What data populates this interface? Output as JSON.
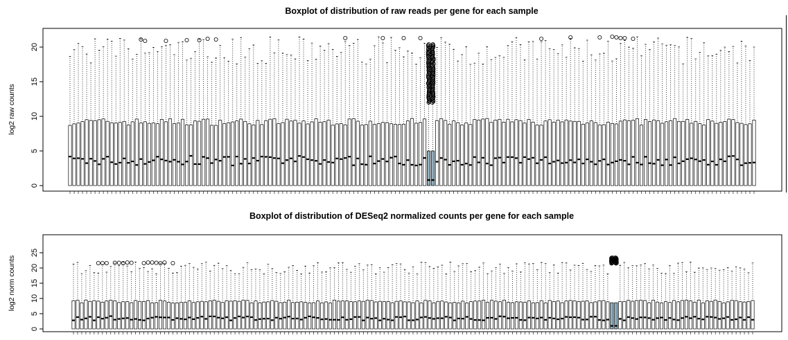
{
  "chart_data": [
    {
      "type": "boxplot",
      "title": "Boxplot of distribution of raw reads per gene for each sample",
      "ylabel": "log2 raw counts",
      "xlabel": "",
      "ylim": [
        0,
        22
      ],
      "yticks": [
        0,
        5,
        10,
        15,
        20
      ],
      "grid": false,
      "legend": "none",
      "n_samples": 165,
      "box_color": "#ffffff",
      "highlight_color": "#8fb0c0",
      "highlighted_samples": [
        86,
        87
      ],
      "median_typical": 3.6,
      "q3_typical": 9.2,
      "q1_typical": 0,
      "whisker_max_range": [
        17.5,
        21.5
      ],
      "outlier_sample_whisker_max": 12,
      "outlier_sample_points_range": [
        12,
        20.5
      ],
      "outlier_marks": [
        {
          "sample": 17,
          "value": 21.1
        },
        {
          "sample": 18,
          "value": 20.9
        },
        {
          "sample": 23,
          "value": 20.9
        },
        {
          "sample": 28,
          "value": 21.0
        },
        {
          "sample": 31,
          "value": 21.0
        },
        {
          "sample": 33,
          "value": 21.2
        },
        {
          "sample": 35,
          "value": 21.1
        },
        {
          "sample": 66,
          "value": 21.3
        },
        {
          "sample": 75,
          "value": 21.3
        },
        {
          "sample": 80,
          "value": 21.3
        },
        {
          "sample": 84,
          "value": 21.3
        },
        {
          "sample": 113,
          "value": 21.2
        },
        {
          "sample": 120,
          "value": 21.4
        },
        {
          "sample": 127,
          "value": 21.4
        },
        {
          "sample": 130,
          "value": 21.5
        },
        {
          "sample": 131,
          "value": 21.4
        },
        {
          "sample": 132,
          "value": 21.3
        },
        {
          "sample": 133,
          "value": 21.3
        },
        {
          "sample": 135,
          "value": 21.2
        }
      ]
    },
    {
      "type": "boxplot",
      "title": "Boxplot of distribution of DESeq2 normalized counts per gene for each sample",
      "ylabel": "log2 norm counts",
      "xlabel": "",
      "ylim": [
        0,
        25
      ],
      "yticks": [
        0,
        5,
        10,
        15,
        20,
        25
      ],
      "grid": false,
      "legend": "none",
      "n_samples": 165,
      "box_color": "#ffffff",
      "highlight_color": "#8fb0c0",
      "highlighted_samples": [
        130,
        131
      ],
      "median_typical": 3.5,
      "q3_typical": 9.0,
      "q1_typical": 0,
      "whisker_max_range": [
        18,
        22
      ],
      "outlier_sample_whisker_max": 8.5,
      "outlier_sample_points_range": [
        21.5,
        23.5
      ],
      "outlier_marks": [
        {
          "sample": 6,
          "value": 21.6
        },
        {
          "sample": 7,
          "value": 21.6
        },
        {
          "sample": 8,
          "value": 21.6
        },
        {
          "sample": 10,
          "value": 21.7
        },
        {
          "sample": 11,
          "value": 21.7
        },
        {
          "sample": 12,
          "value": 21.6
        },
        {
          "sample": 13,
          "value": 21.8
        },
        {
          "sample": 14,
          "value": 21.7
        },
        {
          "sample": 17,
          "value": 21.6
        },
        {
          "sample": 18,
          "value": 21.8
        },
        {
          "sample": 19,
          "value": 21.8
        },
        {
          "sample": 20,
          "value": 21.7
        },
        {
          "sample": 21,
          "value": 21.6
        },
        {
          "sample": 22,
          "value": 21.8
        },
        {
          "sample": 24,
          "value": 21.6
        }
      ]
    }
  ]
}
